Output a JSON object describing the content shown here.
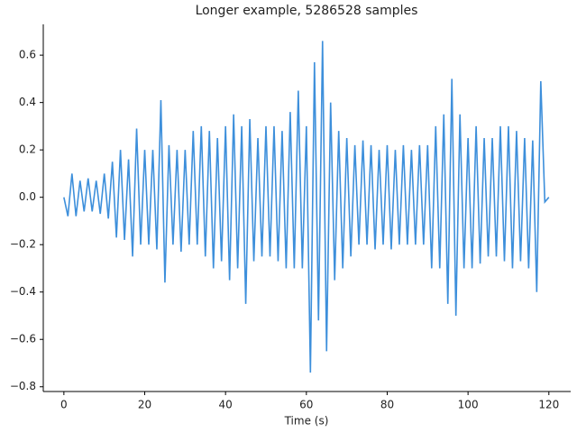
{
  "chart_data": {
    "type": "line",
    "title": "Longer example, 5286528 samples",
    "x_label": "Time (s)",
    "x": [
      0,
      1,
      2,
      3,
      4,
      5,
      6,
      7,
      8,
      9,
      10,
      11,
      12,
      13,
      14,
      15,
      16,
      17,
      18,
      19,
      20,
      21,
      22,
      23,
      24,
      25,
      26,
      27,
      28,
      29,
      30,
      31,
      32,
      33,
      34,
      35,
      36,
      37,
      38,
      39,
      40,
      41,
      42,
      43,
      44,
      45,
      46,
      47,
      48,
      49,
      50,
      51,
      52,
      53,
      54,
      55,
      56,
      57,
      58,
      59,
      60,
      61,
      62,
      63,
      64,
      65,
      66,
      67,
      68,
      69,
      70,
      71,
      72,
      73,
      74,
      75,
      76,
      77,
      78,
      79,
      80,
      81,
      82,
      83,
      84,
      85,
      86,
      87,
      88,
      89,
      90,
      91,
      92,
      93,
      94,
      95,
      96,
      97,
      98,
      99,
      100,
      101,
      102,
      103,
      104,
      105,
      106,
      107,
      108,
      109,
      110,
      111,
      112,
      113,
      114,
      115,
      116,
      117,
      118,
      119,
      120
    ],
    "series": [
      {
        "color": "#3d8fdb",
        "values": [
          0,
          -0.08,
          0.1,
          -0.08,
          0.07,
          -0.06,
          0.08,
          -0.06,
          0.07,
          -0.07,
          0.1,
          -0.09,
          0.15,
          -0.17,
          0.2,
          -0.18,
          0.16,
          -0.25,
          0.29,
          -0.2,
          0.2,
          -0.2,
          0.2,
          -0.22,
          0.41,
          -0.36,
          0.22,
          -0.2,
          0.2,
          -0.23,
          0.2,
          -0.2,
          0.28,
          -0.2,
          0.3,
          -0.25,
          0.28,
          -0.3,
          0.25,
          -0.27,
          0.3,
          -0.35,
          0.35,
          -0.3,
          0.3,
          -0.45,
          0.33,
          -0.27,
          0.25,
          -0.25,
          0.3,
          -0.25,
          0.3,
          -0.27,
          0.28,
          -0.3,
          0.36,
          -0.3,
          0.45,
          -0.3,
          0.3,
          -0.74,
          0.57,
          -0.52,
          0.66,
          -0.65,
          0.4,
          -0.35,
          0.28,
          -0.3,
          0.25,
          -0.25,
          0.22,
          -0.2,
          0.24,
          -0.2,
          0.22,
          -0.22,
          0.2,
          -0.2,
          0.22,
          -0.22,
          0.2,
          -0.2,
          0.22,
          -0.2,
          0.2,
          -0.2,
          0.22,
          -0.2,
          0.22,
          -0.3,
          0.3,
          -0.3,
          0.35,
          -0.45,
          0.5,
          -0.5,
          0.35,
          -0.3,
          0.25,
          -0.3,
          0.3,
          -0.28,
          0.25,
          -0.25,
          0.25,
          -0.25,
          0.3,
          -0.27,
          0.3,
          -0.3,
          0.28,
          -0.27,
          0.25,
          -0.3,
          0.24,
          -0.4,
          0.49,
          -0.02,
          0
        ]
      }
    ],
    "xlim": [
      -5.1,
      125.4
    ],
    "xticks": [
      0,
      20,
      40,
      60,
      80,
      100,
      120
    ],
    "ylim": [
      -0.82,
      0.73
    ],
    "yticks": [
      {
        "value": -0.8,
        "label": "−0.8"
      },
      {
        "value": -0.6,
        "label": "−0.6"
      },
      {
        "value": -0.4,
        "label": "−0.4"
      },
      {
        "value": -0.2,
        "label": "−0.2"
      },
      {
        "value": 0,
        "label": "0.0"
      },
      0.2,
      0.4,
      0.6
    ]
  }
}
